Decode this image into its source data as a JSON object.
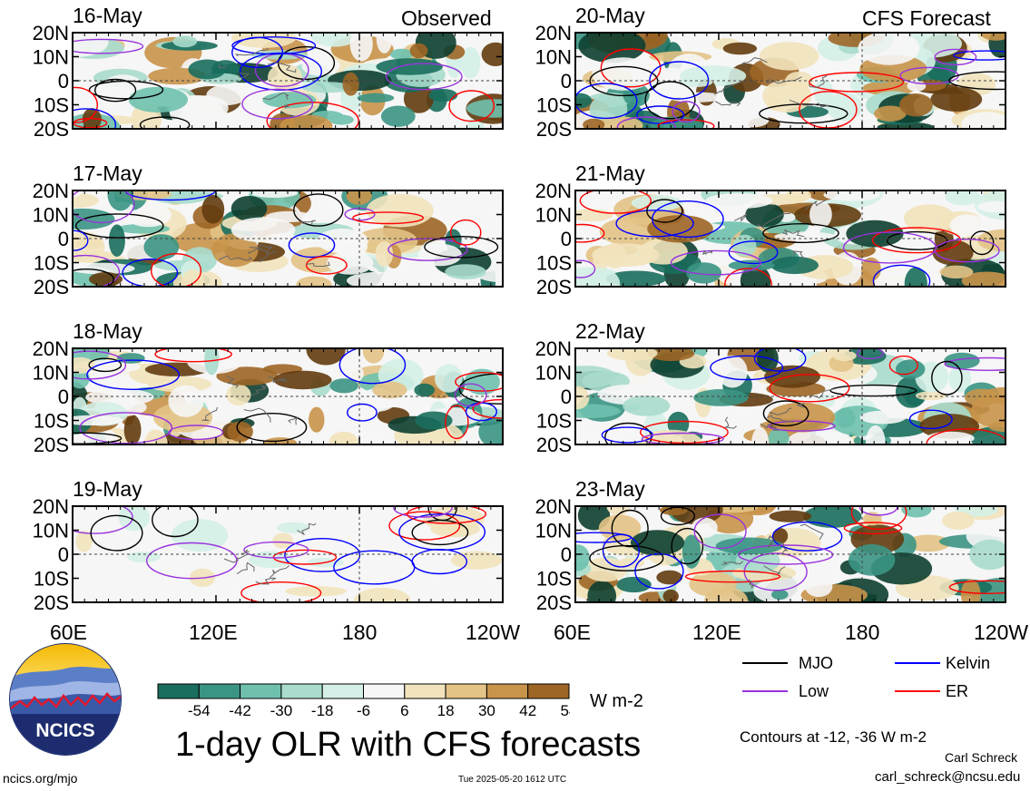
{
  "chart_data": {
    "type": "heatmap",
    "title": "1-day OLR with CFS forecasts",
    "observed_label": "Observed",
    "forecast_label": "CFS Forecast",
    "observed_panels": [
      "16-May",
      "17-May",
      "18-May",
      "19-May"
    ],
    "forecast_panels": [
      "20-May",
      "21-May",
      "22-May",
      "23-May"
    ],
    "lat_ticks": [
      "20N",
      "10N",
      "0",
      "10S",
      "20S"
    ],
    "lon_ticks": [
      "60E",
      "120E",
      "180",
      "120W"
    ],
    "ylim": [
      -20,
      20
    ],
    "xlim_labels": [
      "60E",
      "120W"
    ],
    "colorbar": {
      "ticks": [
        "-54",
        "-42",
        "-30",
        "-18",
        "-6",
        "6",
        "18",
        "30",
        "42",
        "54"
      ],
      "unit": "W m-2",
      "colors": [
        "#0d3f30",
        "#1a6e5d",
        "#3b9584",
        "#6fc1ae",
        "#a9dccd",
        "#d4efe7",
        "#f6f6f6",
        "#f2e3bd",
        "#e3c386",
        "#c8934a",
        "#9d6626",
        "#633c10"
      ]
    },
    "legend": [
      {
        "name": "MJO",
        "color": "#000000"
      },
      {
        "name": "Kelvin",
        "color": "#0000ff"
      },
      {
        "name": "Low",
        "color": "#9933dd"
      },
      {
        "name": "ER",
        "color": "#ff0000"
      }
    ],
    "contours_note": "Contours at -12, -36 W m-2"
  },
  "footer": {
    "site": "ncics.org/mjo",
    "timestamp": "Tue 2025-05-20 1612 UTC",
    "author": "Carl Schreck",
    "email": "carl_schreck@ncsu.edu",
    "logo_text": "NCICS"
  }
}
